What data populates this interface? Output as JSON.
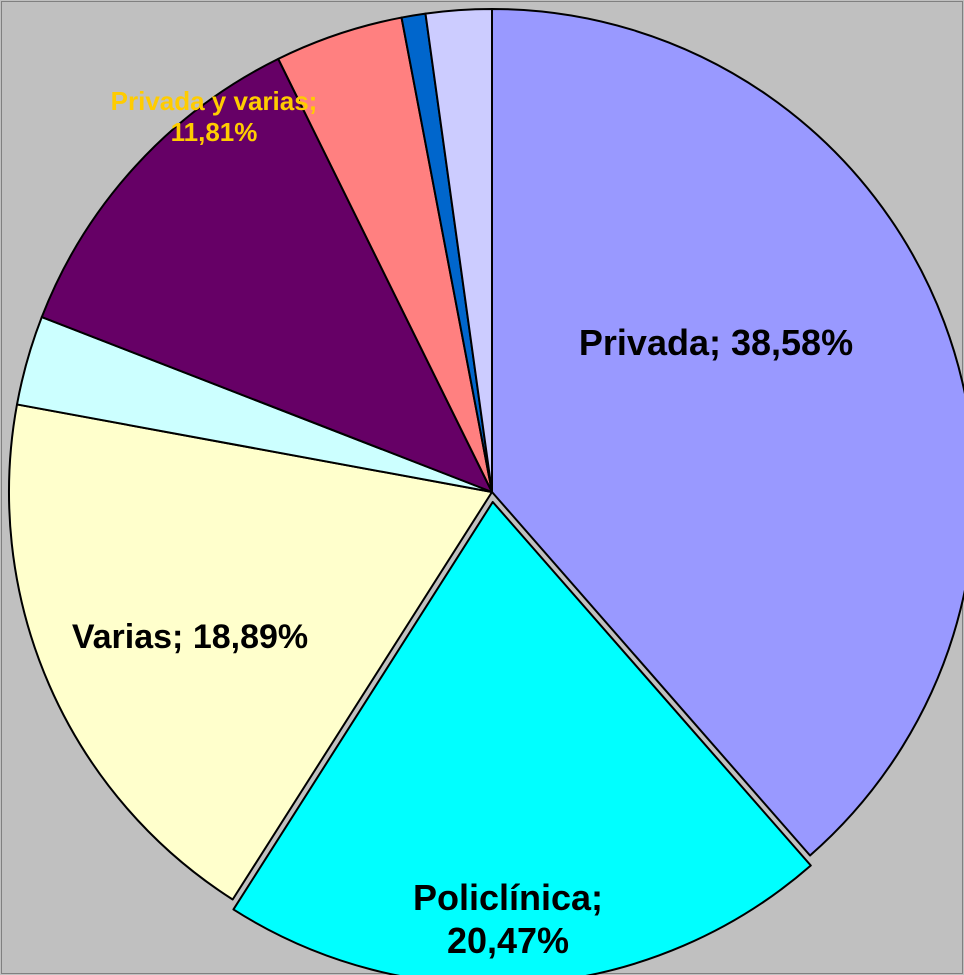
{
  "chart_data": {
    "type": "pie",
    "title": "",
    "start_angle_deg": 0,
    "direction": "clockwise",
    "slices": [
      {
        "name": "Privada",
        "value": 38.58,
        "label": "Privada; 38,58%",
        "color": "#9999ff",
        "label_color": "#000000"
      },
      {
        "name": "Policlínica",
        "value": 20.47,
        "label": "Policlínica; 20,47%",
        "color": "#00ffff",
        "label_color": "#000000",
        "exploded": true
      },
      {
        "name": "Varias",
        "value": 18.89,
        "label": "Varias; 18,89%",
        "color": "#ffffcc",
        "label_color": "#000000"
      },
      {
        "name": "",
        "value": 3.0,
        "label": "",
        "color": "#ccffff"
      },
      {
        "name": "Privada y varias",
        "value": 11.81,
        "label": "Privada y varias; 11,81%",
        "color": "#660066",
        "label_color": "#ffcc00"
      },
      {
        "name": "",
        "value": 4.3,
        "label": "",
        "color": "#ff8080"
      },
      {
        "name": "",
        "value": 0.8,
        "label": "",
        "color": "#0066cc"
      },
      {
        "name": "",
        "value": 2.2,
        "label": "",
        "color": "#ccccff"
      }
    ],
    "background_color": "#c0c0c0",
    "legend": "none"
  }
}
